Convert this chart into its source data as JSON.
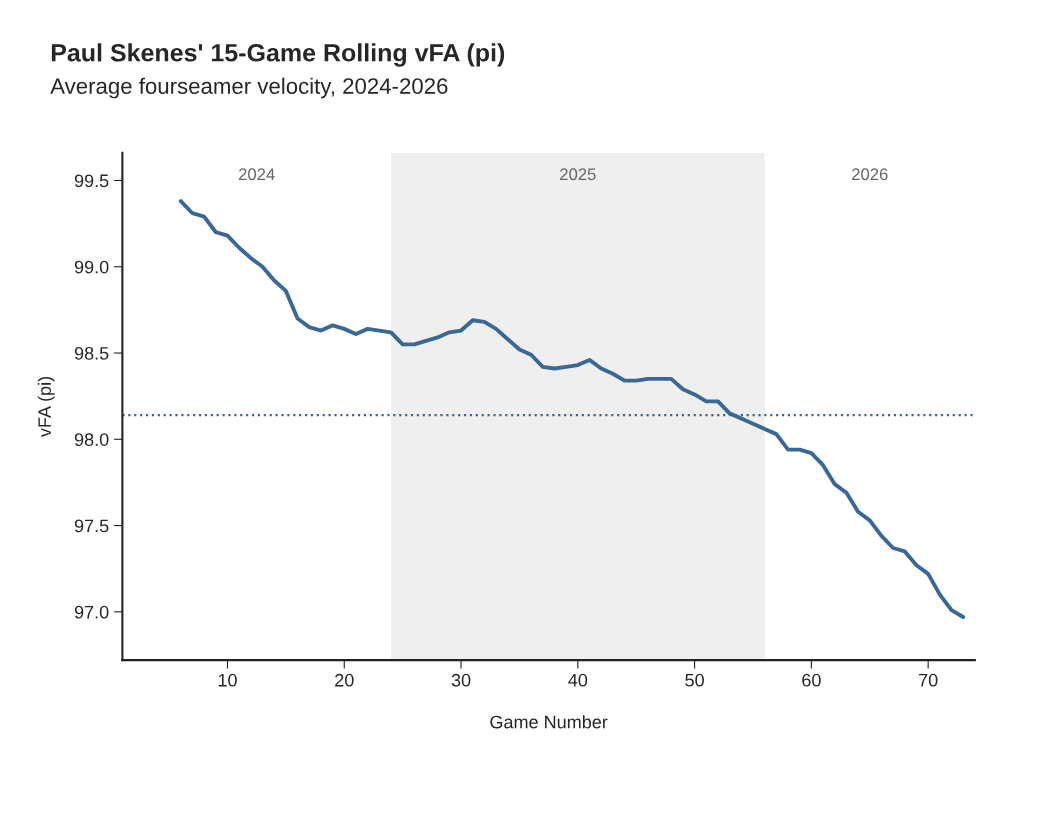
{
  "chart_data": {
    "type": "line",
    "title": "Paul Skenes' 15-Game Rolling vFA (pi)",
    "subtitle": "Average fourseamer velocity, 2024-2026",
    "xlabel": "Game Number",
    "ylabel": "vFA (pi)",
    "x": [
      6,
      7,
      8,
      9,
      10,
      11,
      12,
      13,
      14,
      15,
      16,
      17,
      18,
      19,
      20,
      21,
      22,
      23,
      24,
      25,
      26,
      27,
      28,
      29,
      30,
      31,
      32,
      33,
      34,
      35,
      36,
      37,
      38,
      39,
      40,
      41,
      42,
      43,
      44,
      45,
      46,
      47,
      48,
      49,
      50,
      51,
      52,
      53,
      54,
      55,
      56,
      57,
      58,
      59,
      60,
      61,
      62,
      63,
      64,
      65,
      66,
      67,
      68,
      69,
      70,
      71,
      72,
      73
    ],
    "series": [
      {
        "color": "#3a6896",
        "values": [
          99.38,
          99.31,
          99.29,
          99.2,
          99.18,
          99.11,
          99.05,
          99.0,
          98.92,
          98.86,
          98.7,
          98.65,
          98.63,
          98.66,
          98.64,
          98.61,
          98.64,
          98.63,
          98.62,
          98.55,
          98.55,
          98.57,
          98.59,
          98.62,
          98.63,
          98.69,
          98.68,
          98.64,
          98.58,
          98.52,
          98.49,
          98.42,
          98.41,
          98.42,
          98.43,
          98.46,
          98.41,
          98.38,
          98.34,
          98.34,
          98.35,
          98.35,
          98.35,
          98.29,
          98.26,
          98.22,
          98.22,
          98.15,
          98.12,
          98.09,
          98.06,
          98.03,
          97.94,
          97.94,
          97.92,
          97.85,
          97.74,
          97.69,
          97.58,
          97.53,
          97.44,
          97.37,
          97.35,
          97.27,
          97.22,
          97.1,
          97.01,
          96.97
        ]
      }
    ],
    "xlim": [
      1,
      74
    ],
    "ylim": [
      96.72,
      99.66
    ],
    "xticks": [
      10,
      20,
      30,
      40,
      50,
      60,
      70
    ],
    "yticks": [
      {
        "value": 97,
        "label": "97.0"
      },
      {
        "value": 97.5,
        "label": "97.5"
      },
      {
        "value": 98,
        "label": "98.0"
      },
      {
        "value": 98.5,
        "label": "98.5"
      },
      {
        "value": 99,
        "label": "99.0"
      },
      {
        "value": 99.5,
        "label": "99.5"
      }
    ],
    "ref_lines": [
      {
        "axis": "y",
        "value": 98.14,
        "color": "#3a6896",
        "line_style": "dotted"
      }
    ],
    "bands": [
      {
        "axis": "x",
        "from": 24,
        "to": 56,
        "label": "2025",
        "color": "#efefef"
      }
    ],
    "annotations": [
      "2024",
      "2026"
    ],
    "grid": false,
    "legend": false
  }
}
